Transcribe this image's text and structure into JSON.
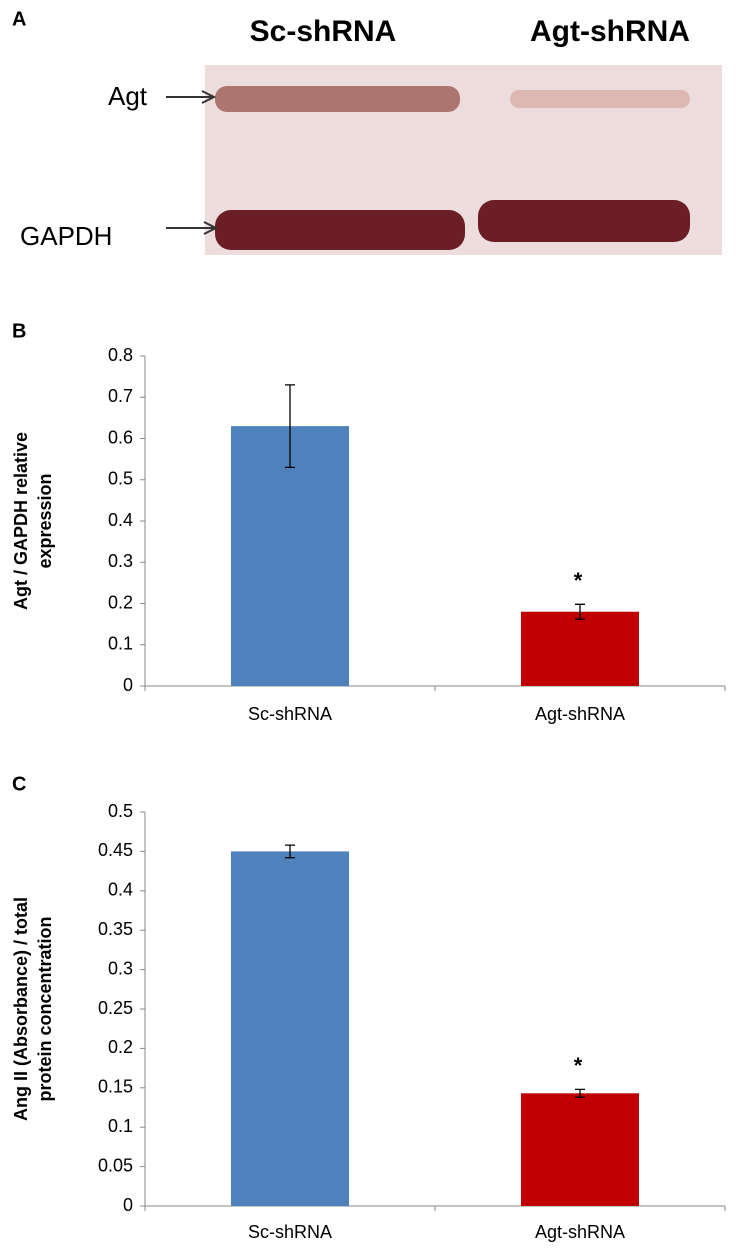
{
  "blot": {
    "panel_label": "A",
    "lanes": [
      "Sc-shRNA",
      "Agt-shRNA"
    ],
    "bands": [
      "Agt",
      "GAPDH"
    ]
  },
  "chart_data": [
    {
      "type": "bar",
      "panel_label": "B",
      "ylabel": [
        "Agt / GAPDH relative",
        "expression"
      ],
      "categories": [
        "Sc-shRNA",
        "Agt-shRNA"
      ],
      "values": [
        0.63,
        0.18
      ],
      "errors": [
        0.1,
        0.018
      ],
      "colors": [
        "#4f81bd",
        "#c00000"
      ],
      "significance": [
        null,
        "*"
      ],
      "ylim": [
        0,
        0.8
      ],
      "yticks": [
        0,
        0.1,
        0.2,
        0.3,
        0.4,
        0.5,
        0.6,
        0.7,
        0.8
      ],
      "grid": false
    },
    {
      "type": "bar",
      "panel_label": "C",
      "ylabel": [
        "Ang II (Absorbance) / total",
        "protein concentration"
      ],
      "categories": [
        "Sc-shRNA",
        "Agt-shRNA"
      ],
      "values": [
        0.45,
        0.143
      ],
      "errors": [
        0.008,
        0.005
      ],
      "colors": [
        "#4f81bd",
        "#c00000"
      ],
      "significance": [
        null,
        "*"
      ],
      "ylim": [
        0,
        0.5
      ],
      "yticks": [
        0,
        0.05,
        0.1,
        0.15,
        0.2,
        0.25,
        0.3,
        0.35,
        0.4,
        0.45,
        0.5
      ],
      "grid": false
    }
  ]
}
